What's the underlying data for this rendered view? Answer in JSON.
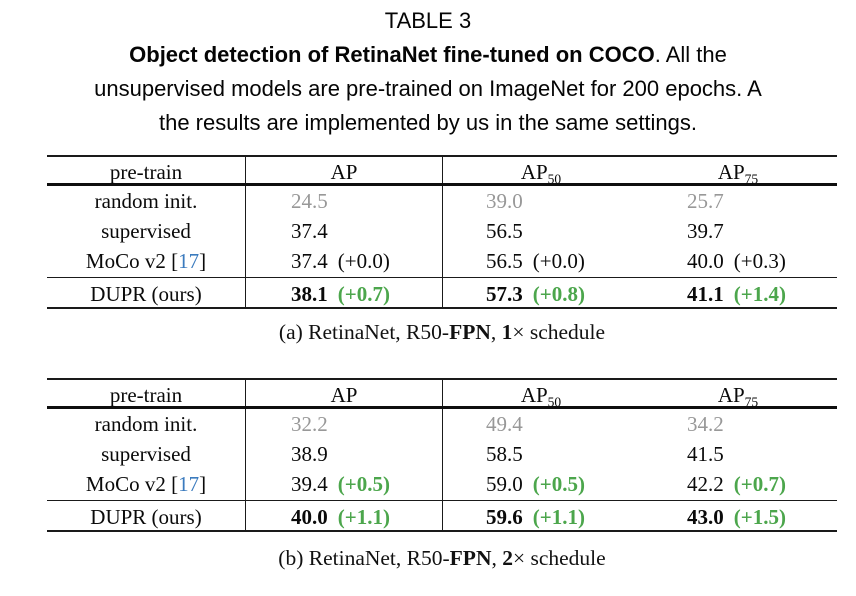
{
  "title": "TABLE 3",
  "description": {
    "bold": "Object detection of RetinaNet fine-tuned on COCO",
    "after_bold": ". All the",
    "line2": "unsupervised models are pre-trained on ImageNet for 200 epochs. A",
    "line3": "the results are implemented by us in the same settings."
  },
  "colors": {
    "improvement_green": "#4CA64C",
    "baseline_gray": "#989898",
    "citation_blue": "#3B7BBE"
  },
  "tables": [
    {
      "header": {
        "pretrain": "pre-train",
        "ap": "AP",
        "ap50_base": "AP",
        "ap50_sub": "50",
        "ap75_base": "AP",
        "ap75_sub": "75"
      },
      "rows": [
        {
          "label": "random init.",
          "ap": "24.5",
          "ap50": "39.0",
          "ap75": "25.7"
        },
        {
          "label": "supervised",
          "ap": "37.4",
          "ap50": "56.5",
          "ap75": "39.7"
        },
        {
          "label_pre": "MoCo v2 [",
          "cite": "17",
          "label_post": "]",
          "ap": "37.4",
          "ap_delta": "(+0.0)",
          "ap50": "56.5",
          "ap50_delta": "(+0.0)",
          "ap75": "40.0",
          "ap75_delta": "(+0.3)"
        },
        {
          "label": "DUPR (ours)",
          "ap": "38.1",
          "ap_delta": "(+0.7)",
          "ap50": "57.3",
          "ap50_delta": "(+0.8)",
          "ap75": "41.1",
          "ap75_delta": "(+1.4)"
        }
      ],
      "caption": {
        "pre": "(a) RetinaNet, R50-",
        "fpn": "FPN",
        "sep": ", ",
        "num": "1",
        "post": "× schedule"
      }
    },
    {
      "header": {
        "pretrain": "pre-train",
        "ap": "AP",
        "ap50_base": "AP",
        "ap50_sub": "50",
        "ap75_base": "AP",
        "ap75_sub": "75"
      },
      "rows": [
        {
          "label": "random init.",
          "ap": "32.2",
          "ap50": "49.4",
          "ap75": "34.2"
        },
        {
          "label": "supervised",
          "ap": "38.9",
          "ap50": "58.5",
          "ap75": "41.5"
        },
        {
          "label_pre": "MoCo v2 [",
          "cite": "17",
          "label_post": "]",
          "ap": "39.4",
          "ap_delta": "(+0.5)",
          "ap50": "59.0",
          "ap50_delta": "(+0.5)",
          "ap75": "42.2",
          "ap75_delta": "(+0.7)"
        },
        {
          "label": "DUPR (ours)",
          "ap": "40.0",
          "ap_delta": "(+1.1)",
          "ap50": "59.6",
          "ap50_delta": "(+1.1)",
          "ap75": "43.0",
          "ap75_delta": "(+1.5)"
        }
      ],
      "caption": {
        "pre": "(b) RetinaNet, R50-",
        "fpn": "FPN",
        "sep": ", ",
        "num": "2",
        "post": "× schedule"
      }
    }
  ]
}
